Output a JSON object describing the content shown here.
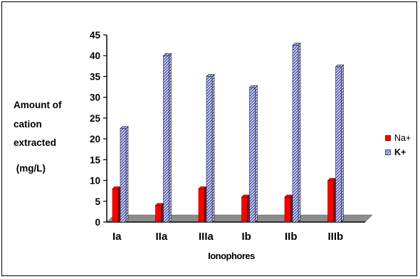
{
  "chart_data": {
    "type": "bar",
    "title": "",
    "categories": [
      "Ia",
      "IIa",
      "IIIa",
      "Ib",
      "IIb",
      "IIIb"
    ],
    "series": [
      {
        "name": "Na+",
        "values": [
          8,
          4,
          8,
          6,
          6,
          10
        ]
      },
      {
        "name": "K+",
        "values": [
          22.5,
          40,
          35,
          32.3,
          42.5,
          37.3
        ]
      }
    ],
    "xlabel": "Ionophores",
    "ylabel_lines": [
      "Amount of",
      "cation",
      "extracted",
      " (mg/L)"
    ],
    "ylim": [
      0,
      45
    ],
    "yticks": [
      0,
      5,
      10,
      15,
      20,
      25,
      30,
      35,
      40,
      45
    ],
    "grid": false,
    "legend_position": "right",
    "colors": {
      "na": "#ff0000",
      "na_dark": "#a00000",
      "k_fill": "#d8dcf4",
      "k_hatch": "#3a44a8",
      "floor": "#8c8c8c"
    }
  }
}
